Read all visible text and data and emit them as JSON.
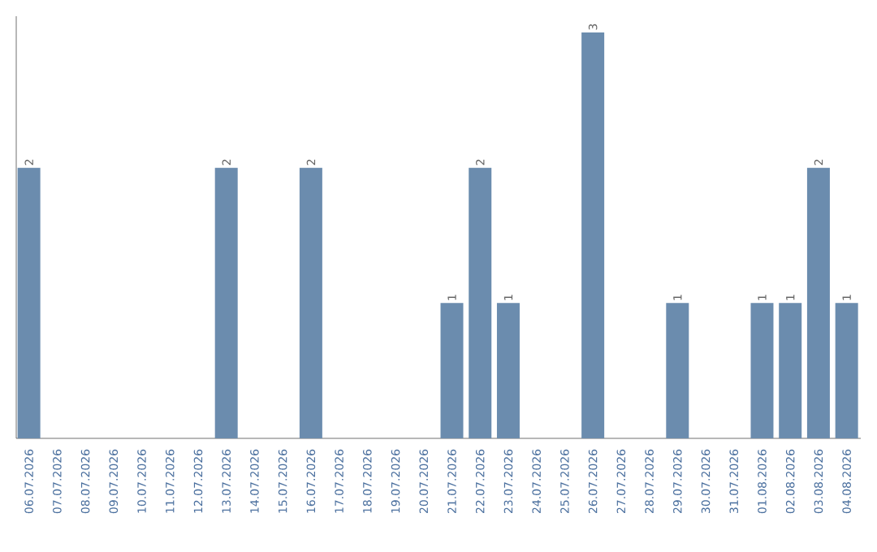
{
  "chart_data": {
    "type": "bar",
    "categories": [
      "06.07.2026",
      "07.07.2026",
      "08.07.2026",
      "09.07.2026",
      "10.07.2026",
      "11.07.2026",
      "12.07.2026",
      "13.07.2026",
      "14.07.2026",
      "15.07.2026",
      "16.07.2026",
      "17.07.2026",
      "18.07.2026",
      "19.07.2026",
      "20.07.2026",
      "21.07.2026",
      "22.07.2026",
      "23.07.2026",
      "24.07.2026",
      "25.07.2026",
      "26.07.2026",
      "27.07.2026",
      "28.07.2026",
      "29.07.2026",
      "30.07.2026",
      "31.07.2026",
      "01.08.2026",
      "02.08.2026",
      "03.08.2026",
      "04.08.2026"
    ],
    "values": [
      2,
      0,
      0,
      0,
      0,
      0,
      0,
      2,
      0,
      0,
      2,
      0,
      0,
      0,
      0,
      1,
      2,
      1,
      0,
      0,
      3,
      0,
      0,
      1,
      0,
      0,
      1,
      1,
      2,
      1
    ],
    "value_labels": [
      "2",
      null,
      null,
      null,
      null,
      null,
      null,
      "2",
      null,
      null,
      "2",
      null,
      null,
      null,
      null,
      "1",
      "2",
      "1",
      null,
      null,
      "3",
      null,
      null,
      "1",
      null,
      null,
      "1",
      "1",
      "2",
      "1"
    ],
    "color": "#6b8cae",
    "tick_labels": "x"
  }
}
